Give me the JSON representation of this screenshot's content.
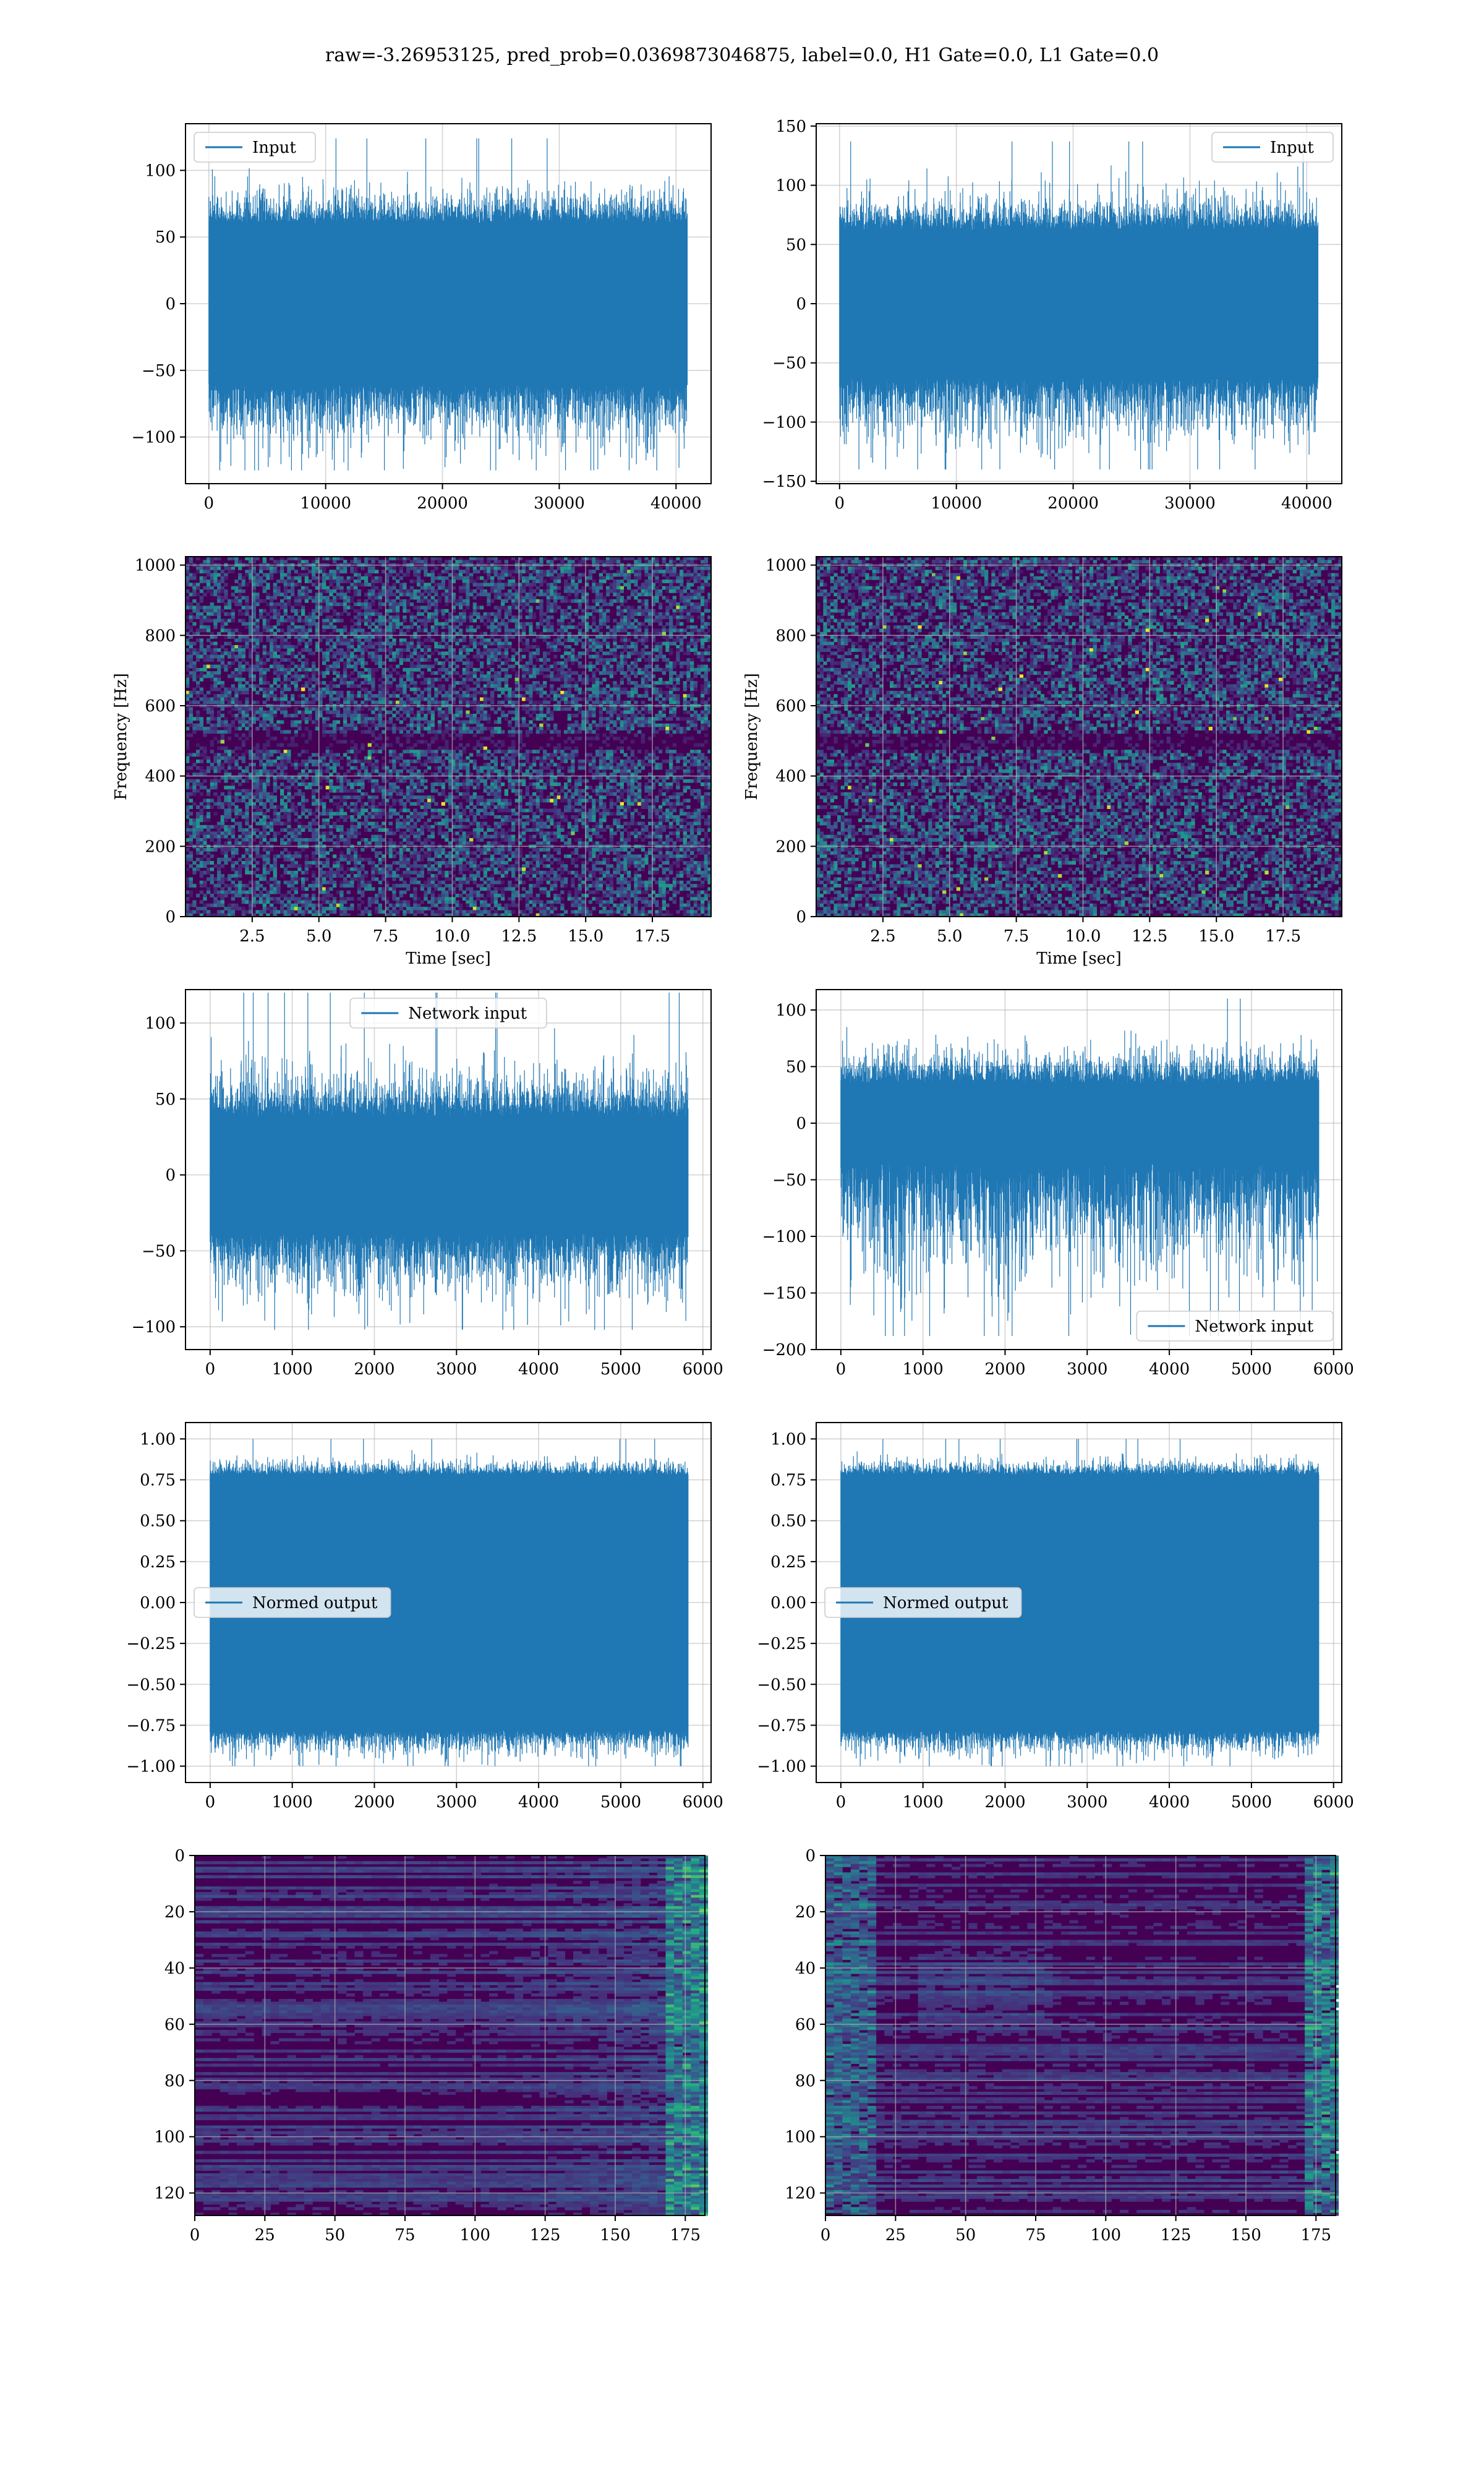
{
  "figure": {
    "suptitle": "raw=-3.26953125, pred_prob=0.0369873046875, label=0.0, H1 Gate=0.0, L1 Gate=0.0",
    "colors": {
      "line": "#1f77b4",
      "grid": "#b0b0b0",
      "viridis_dark": "#440154",
      "viridis_mid": "#31688e",
      "viridis_teal": "#35b779",
      "viridis_bright": "#fde725"
    }
  },
  "chart_data": [
    {
      "id": "input-h1",
      "type": "line",
      "title": "",
      "xlabel": "",
      "ylabel": "",
      "xlim": [
        -2000,
        43000
      ],
      "ylim": [
        -135,
        135
      ],
      "xticks": [
        0,
        10000,
        20000,
        30000,
        40000
      ],
      "yticks": [
        -100,
        -50,
        0,
        50,
        100
      ],
      "grid": true,
      "legend_position": "upper left",
      "series": [
        {
          "name": "Input",
          "x_range": [
            0,
            40960
          ],
          "band_low": -60,
          "band_high": 60,
          "peak_min": -125,
          "peak_max": 124
        }
      ]
    },
    {
      "id": "input-l1",
      "type": "line",
      "title": "",
      "xlabel": "",
      "ylabel": "",
      "xlim": [
        -2000,
        43000
      ],
      "ylim": [
        -152,
        152
      ],
      "xticks": [
        0,
        10000,
        20000,
        30000,
        40000
      ],
      "yticks": [
        -150,
        -100,
        -50,
        0,
        50,
        100,
        150
      ],
      "grid": true,
      "legend_position": "upper right",
      "series": [
        {
          "name": "Input",
          "x_range": [
            0,
            40960
          ],
          "band_low": -62,
          "band_high": 62,
          "peak_min": -140,
          "peak_max": 137
        }
      ]
    },
    {
      "id": "spectrogram-h1",
      "type": "heatmap",
      "title": "",
      "xlabel": "Time [sec]",
      "ylabel": "Frequency [Hz]",
      "xlim": [
        0.0,
        19.7
      ],
      "ylim": [
        0,
        1024
      ],
      "xticks": [
        2.5,
        5.0,
        7.5,
        10.0,
        12.5,
        15.0,
        17.5
      ],
      "xtick_labels": [
        "2.5",
        "5.0",
        "7.5",
        "10.0",
        "12.5",
        "15.0",
        "17.5"
      ],
      "yticks": [
        0,
        200,
        400,
        600,
        800,
        1000
      ],
      "grid": true,
      "colormap": "viridis",
      "dark_band_hz": 500
    },
    {
      "id": "spectrogram-l1",
      "type": "heatmap",
      "title": "",
      "xlabel": "Time [sec]",
      "ylabel": "Frequency [Hz]",
      "xlim": [
        0.0,
        19.7
      ],
      "ylim": [
        0,
        1024
      ],
      "xticks": [
        2.5,
        5.0,
        7.5,
        10.0,
        12.5,
        15.0,
        17.5
      ],
      "xtick_labels": [
        "2.5",
        "5.0",
        "7.5",
        "10.0",
        "12.5",
        "15.0",
        "17.5"
      ],
      "yticks": [
        0,
        200,
        400,
        600,
        800,
        1000
      ],
      "grid": true,
      "colormap": "viridis",
      "dark_band_hz": 500
    },
    {
      "id": "network-input-h1",
      "type": "line",
      "title": "",
      "xlabel": "",
      "ylabel": "",
      "xlim": [
        -300,
        6100
      ],
      "ylim": [
        -115,
        122
      ],
      "xticks": [
        0,
        1000,
        2000,
        3000,
        4000,
        5000,
        6000
      ],
      "yticks": [
        -100,
        -50,
        0,
        50,
        100
      ],
      "grid": true,
      "legend_position": "upper center",
      "series": [
        {
          "name": "Network input",
          "x_range": [
            0,
            5820
          ],
          "band_low": -38,
          "band_high": 38,
          "peak_min": -102,
          "peak_max": 120
        }
      ]
    },
    {
      "id": "network-input-l1",
      "type": "line",
      "title": "",
      "xlabel": "",
      "ylabel": "",
      "xlim": [
        -300,
        6100
      ],
      "ylim": [
        -200,
        118
      ],
      "xticks": [
        0,
        1000,
        2000,
        3000,
        4000,
        5000,
        6000
      ],
      "yticks": [
        -200,
        -150,
        -100,
        -50,
        0,
        50,
        100
      ],
      "grid": true,
      "legend_position": "lower right",
      "series": [
        {
          "name": "Network input",
          "x_range": [
            0,
            5820
          ],
          "band_low": -35,
          "band_high": 35,
          "peak_min": -188,
          "peak_max": 110
        }
      ]
    },
    {
      "id": "normed-output-h1",
      "type": "line",
      "title": "",
      "xlabel": "",
      "ylabel": "",
      "xlim": [
        -300,
        6100
      ],
      "ylim": [
        -1.1,
        1.1
      ],
      "xticks": [
        0,
        1000,
        2000,
        3000,
        4000,
        5000,
        6000
      ],
      "yticks": [
        -1.0,
        -0.75,
        -0.5,
        -0.25,
        0.0,
        0.25,
        0.5,
        0.75,
        1.0
      ],
      "ytick_labels": [
        "−1.00",
        "−0.75",
        "−0.50",
        "−0.25",
        "0.00",
        "0.25",
        "0.50",
        "0.75",
        "1.00"
      ],
      "grid": true,
      "legend_position": "center left",
      "series": [
        {
          "name": "Normed output",
          "x_range": [
            0,
            5820
          ],
          "band_low": -0.78,
          "band_high": 0.78,
          "peak_min": -1.0,
          "peak_max": 1.0
        }
      ]
    },
    {
      "id": "normed-output-l1",
      "type": "line",
      "title": "",
      "xlabel": "",
      "ylabel": "",
      "xlim": [
        -300,
        6100
      ],
      "ylim": [
        -1.1,
        1.1
      ],
      "xticks": [
        0,
        1000,
        2000,
        3000,
        4000,
        5000,
        6000
      ],
      "yticks": [
        -1.0,
        -0.75,
        -0.5,
        -0.25,
        0.0,
        0.25,
        0.5,
        0.75,
        1.0
      ],
      "ytick_labels": [
        "−1.00",
        "−0.75",
        "−0.50",
        "−0.25",
        "0.00",
        "0.25",
        "0.50",
        "0.75",
        "1.00"
      ],
      "grid": true,
      "legend_position": "center left",
      "series": [
        {
          "name": "Normed output",
          "x_range": [
            0,
            5820
          ],
          "band_low": -0.78,
          "band_high": 0.78,
          "peak_min": -1.0,
          "peak_max": 1.0
        }
      ]
    },
    {
      "id": "feature-map-h1",
      "type": "heatmap",
      "title": "",
      "xlabel": "",
      "ylabel": "",
      "xlim": [
        0,
        182
      ],
      "ylim": [
        128,
        0
      ],
      "xticks": [
        0,
        25,
        50,
        75,
        100,
        125,
        150,
        175
      ],
      "yticks": [
        0,
        20,
        40,
        60,
        80,
        100,
        120
      ],
      "grid": true,
      "colormap": "viridis",
      "shape": [
        128,
        182
      ]
    },
    {
      "id": "feature-map-l1",
      "type": "heatmap",
      "title": "",
      "xlabel": "",
      "ylabel": "",
      "xlim": [
        0,
        182
      ],
      "ylim": [
        128,
        0
      ],
      "xticks": [
        0,
        25,
        50,
        75,
        100,
        125,
        150,
        175
      ],
      "yticks": [
        0,
        20,
        40,
        60,
        80,
        100,
        120
      ],
      "grid": true,
      "colormap": "viridis",
      "shape": [
        128,
        182
      ]
    }
  ]
}
